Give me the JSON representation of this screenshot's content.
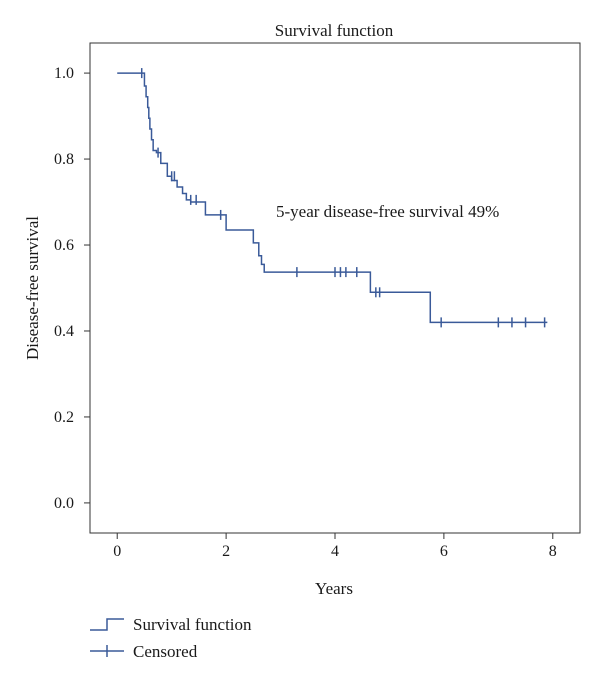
{
  "chart_data": {
    "type": "line",
    "title": "Survival function",
    "xlabel": "Years",
    "ylabel": "Disease-free survival",
    "xlim": [
      -0.5,
      8.5
    ],
    "ylim": [
      -0.07,
      1.07
    ],
    "xticks": [
      0,
      2,
      4,
      6,
      8
    ],
    "xtick_labels": [
      "0",
      "2",
      "4",
      "6",
      "8"
    ],
    "yticks": [
      0.0,
      0.2,
      0.4,
      0.6,
      0.8,
      1.0
    ],
    "ytick_labels": [
      "0.0",
      "0.2",
      "0.4",
      "0.6",
      "0.8",
      "1.0"
    ],
    "grid": false,
    "legend_position": "bottom-left",
    "annotation": "5-year disease-free survival 49%",
    "colors": {
      "line": "#3a5a99",
      "frame": "#333333"
    },
    "series": [
      {
        "name": "Survival function",
        "x": [
          0,
          0.5,
          0.53,
          0.56,
          0.58,
          0.6,
          0.63,
          0.66,
          0.72,
          0.8,
          0.92,
          1.0,
          1.1,
          1.2,
          1.27,
          1.35,
          1.62,
          2.0,
          2.5,
          2.6,
          2.65,
          2.7,
          4.65,
          5.75,
          7.9
        ],
        "y": [
          1.0,
          0.97,
          0.945,
          0.92,
          0.895,
          0.87,
          0.845,
          0.82,
          0.815,
          0.79,
          0.76,
          0.75,
          0.735,
          0.72,
          0.705,
          0.7,
          0.67,
          0.635,
          0.605,
          0.575,
          0.555,
          0.537,
          0.49,
          0.42,
          0.42
        ]
      },
      {
        "name": "Censored",
        "x": [
          0.45,
          0.75,
          1.0,
          1.05,
          1.35,
          1.45,
          1.9,
          3.3,
          4.0,
          4.1,
          4.2,
          4.4,
          4.75,
          4.82,
          5.95,
          7.0,
          7.25,
          7.5,
          7.85
        ],
        "y": [
          1.0,
          0.815,
          0.76,
          0.76,
          0.705,
          0.705,
          0.67,
          0.537,
          0.537,
          0.537,
          0.537,
          0.537,
          0.49,
          0.49,
          0.42,
          0.42,
          0.42,
          0.42,
          0.42
        ]
      }
    ]
  }
}
